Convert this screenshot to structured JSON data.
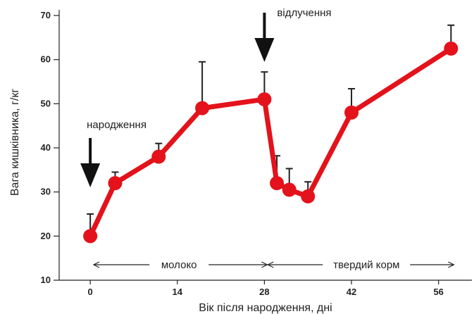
{
  "chart_data": {
    "type": "line",
    "xlabel": "Вік після народження, дні",
    "ylabel": "Вага кишківника, г/кг",
    "xlim": [
      -5,
      60
    ],
    "ylim": [
      10,
      70
    ],
    "xticks": [
      0,
      14,
      28,
      42,
      56
    ],
    "yticks": [
      10,
      20,
      30,
      40,
      50,
      60,
      70
    ],
    "grid": false,
    "color": "#e3121b",
    "series": [
      {
        "x": [
          0,
          4,
          11,
          18,
          28,
          30,
          32,
          35,
          42,
          58
        ],
        "y": [
          20,
          32,
          38,
          49,
          51,
          32,
          30.5,
          29,
          48,
          62.5
        ],
        "error_upper": [
          25,
          34.5,
          41,
          59.5,
          57.2,
          38.2,
          35.3,
          32.3,
          53.4,
          67.8
        ]
      }
    ],
    "annotations": [
      {
        "text": "народження",
        "x": 0,
        "type": "arrow-down"
      },
      {
        "text": "відлучення",
        "x": 28,
        "type": "arrow-down"
      }
    ],
    "periods": [
      {
        "text": "молоко",
        "from": 1,
        "to": 28
      },
      {
        "text": "твердий корм",
        "from": 29,
        "to": 58
      }
    ]
  }
}
